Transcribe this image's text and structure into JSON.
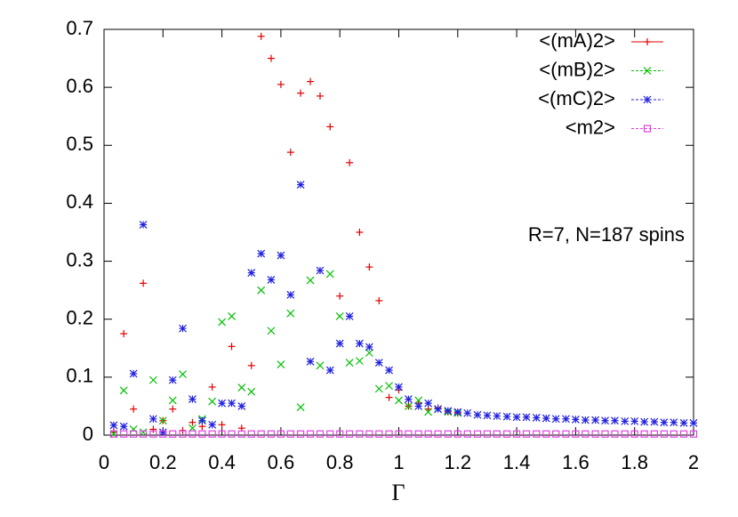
{
  "chart_data": {
    "type": "scatter",
    "xlabel": "Γ",
    "annotation": "R=7, N=187 spins",
    "xlim": [
      0,
      2
    ],
    "ylim": [
      0,
      0.7
    ],
    "xticks": [
      0,
      0.2,
      0.4,
      0.6,
      0.8,
      1,
      1.2,
      1.4,
      1.6,
      1.8,
      2
    ],
    "yticks": [
      0,
      0.1,
      0.2,
      0.3,
      0.4,
      0.5,
      0.6,
      0.7
    ],
    "legend": "top-right",
    "x": [
      0.033,
      0.067,
      0.1,
      0.133,
      0.167,
      0.2,
      0.233,
      0.267,
      0.3,
      0.333,
      0.367,
      0.4,
      0.433,
      0.467,
      0.5,
      0.533,
      0.567,
      0.6,
      0.633,
      0.667,
      0.7,
      0.733,
      0.767,
      0.8,
      0.833,
      0.867,
      0.9,
      0.933,
      0.967,
      1,
      1.033,
      1.067,
      1.1,
      1.133,
      1.167,
      1.2,
      1.233,
      1.267,
      1.3,
      1.333,
      1.367,
      1.4,
      1.433,
      1.467,
      1.5,
      1.533,
      1.567,
      1.6,
      1.633,
      1.667,
      1.7,
      1.733,
      1.767,
      1.8,
      1.833,
      1.867,
      1.9,
      1.933,
      1.967,
      2
    ],
    "series": [
      {
        "name": "<(mA)2>",
        "color": "#e00000",
        "marker": "plus",
        "values": [
          0.005,
          0.175,
          0.045,
          0.262,
          0.01,
          0.025,
          0.045,
          0.008,
          0.022,
          0.015,
          0.083,
          0.018,
          0.153,
          0.012,
          0.12,
          0.688,
          0.65,
          0.605,
          0.488,
          0.59,
          0.61,
          0.585,
          0.532,
          0.24,
          0.47,
          0.35,
          0.29,
          0.232,
          0.065,
          0.078,
          0.05,
          0.055,
          0.045,
          0.047,
          0.04,
          0.038,
          null,
          null,
          null,
          null,
          null,
          null,
          null,
          null,
          null,
          null,
          null,
          null,
          null,
          null,
          null,
          null,
          null,
          null,
          null,
          null,
          null,
          null,
          null,
          null
        ]
      },
      {
        "name": "<(mB)2>",
        "color": "#00c000",
        "marker": "cross",
        "values": [
          0.002,
          0.077,
          0.01,
          0.005,
          0.095,
          0.025,
          0.06,
          0.105,
          0.012,
          0.028,
          0.058,
          0.195,
          0.205,
          0.082,
          0.075,
          0.25,
          0.18,
          0.122,
          0.21,
          0.048,
          0.267,
          0.12,
          0.278,
          0.205,
          0.125,
          0.128,
          0.142,
          0.08,
          0.085,
          0.06,
          0.05,
          0.06,
          0.04,
          0.045,
          0.04,
          0.038,
          null,
          null,
          null,
          null,
          null,
          null,
          null,
          null,
          null,
          null,
          null,
          null,
          null,
          null,
          null,
          null,
          null,
          null,
          null,
          null,
          null,
          null,
          null,
          null
        ]
      },
      {
        "name": "<(mC)2>",
        "color": "#2020e0",
        "marker": "star",
        "values": [
          0.017,
          0.015,
          0.106,
          0.363,
          0.028,
          0.005,
          0.095,
          0.184,
          0.062,
          0.025,
          0.018,
          0.055,
          0.055,
          0.05,
          0.28,
          0.313,
          0.268,
          0.31,
          0.242,
          0.432,
          0.127,
          0.284,
          0.112,
          0.158,
          0.205,
          0.158,
          0.152,
          0.125,
          0.112,
          0.083,
          0.062,
          0.05,
          0.055,
          0.045,
          0.042,
          0.04,
          0.038,
          0.035,
          0.034,
          0.033,
          0.032,
          0.031,
          0.031,
          0.03,
          0.029,
          0.028,
          0.028,
          0.027,
          0.026,
          0.026,
          0.025,
          0.025,
          0.024,
          0.024,
          0.023,
          0.023,
          0.022,
          0.022,
          0.021,
          0.021
        ]
      },
      {
        "name": "<m2>",
        "color": "#e040e0",
        "marker": "square",
        "values": [
          0.002,
          0.002,
          0.002,
          0.002,
          0.002,
          0.002,
          0.002,
          0.002,
          0.002,
          0.002,
          0.002,
          0.002,
          0.002,
          0.002,
          0.002,
          0.002,
          0.002,
          0.002,
          0.002,
          0.002,
          0.002,
          0.002,
          0.002,
          0.002,
          0.002,
          0.002,
          0.002,
          0.002,
          0.002,
          0.002,
          0.002,
          0.002,
          0.002,
          0.002,
          0.002,
          0.002,
          0.002,
          0.002,
          0.002,
          0.002,
          0.002,
          0.002,
          0.002,
          0.002,
          0.002,
          0.002,
          0.002,
          0.002,
          0.002,
          0.002,
          0.002,
          0.002,
          0.002,
          0.002,
          0.002,
          0.002,
          0.002,
          0.002,
          0.002,
          0.002
        ]
      }
    ]
  }
}
